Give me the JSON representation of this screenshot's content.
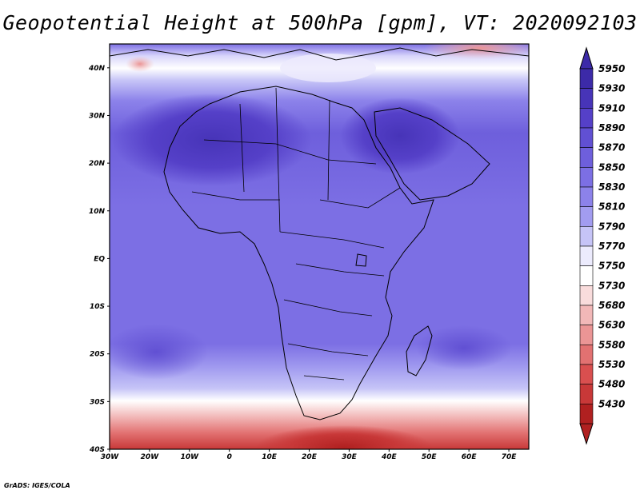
{
  "title": "Geopotential Height at 500hPa [gpm], VT: 2020092103",
  "credit": "GrADS: IGES/COLA",
  "map": {
    "lat_labels": [
      "40N",
      "30N",
      "20N",
      "10N",
      "EQ",
      "10S",
      "20S",
      "30S",
      "40S"
    ],
    "lon_labels": [
      "30W",
      "20W",
      "10W",
      "0",
      "10E",
      "20E",
      "30E",
      "40E",
      "50E",
      "60E",
      "70E"
    ],
    "lon_range": [
      -30,
      75
    ],
    "lat_range": [
      -40,
      45
    ]
  },
  "colorbar": {
    "levels": [
      "5950",
      "5930",
      "5910",
      "5890",
      "5870",
      "5850",
      "5830",
      "5810",
      "5790",
      "5770",
      "5750",
      "5730",
      "5680",
      "5630",
      "5580",
      "5530",
      "5480",
      "5430"
    ],
    "colors": [
      "#3c2aa8",
      "#4734b8",
      "#5540c8",
      "#6150d3",
      "#6e5fdc",
      "#7c6fe4",
      "#8c82ea",
      "#a29cf0",
      "#c6c4f7",
      "#ecebfd",
      "#ffffff",
      "#f9dcdc",
      "#f2b8b8",
      "#eb9595",
      "#e27171",
      "#d94f4f",
      "#c83838",
      "#b02020"
    ]
  }
}
